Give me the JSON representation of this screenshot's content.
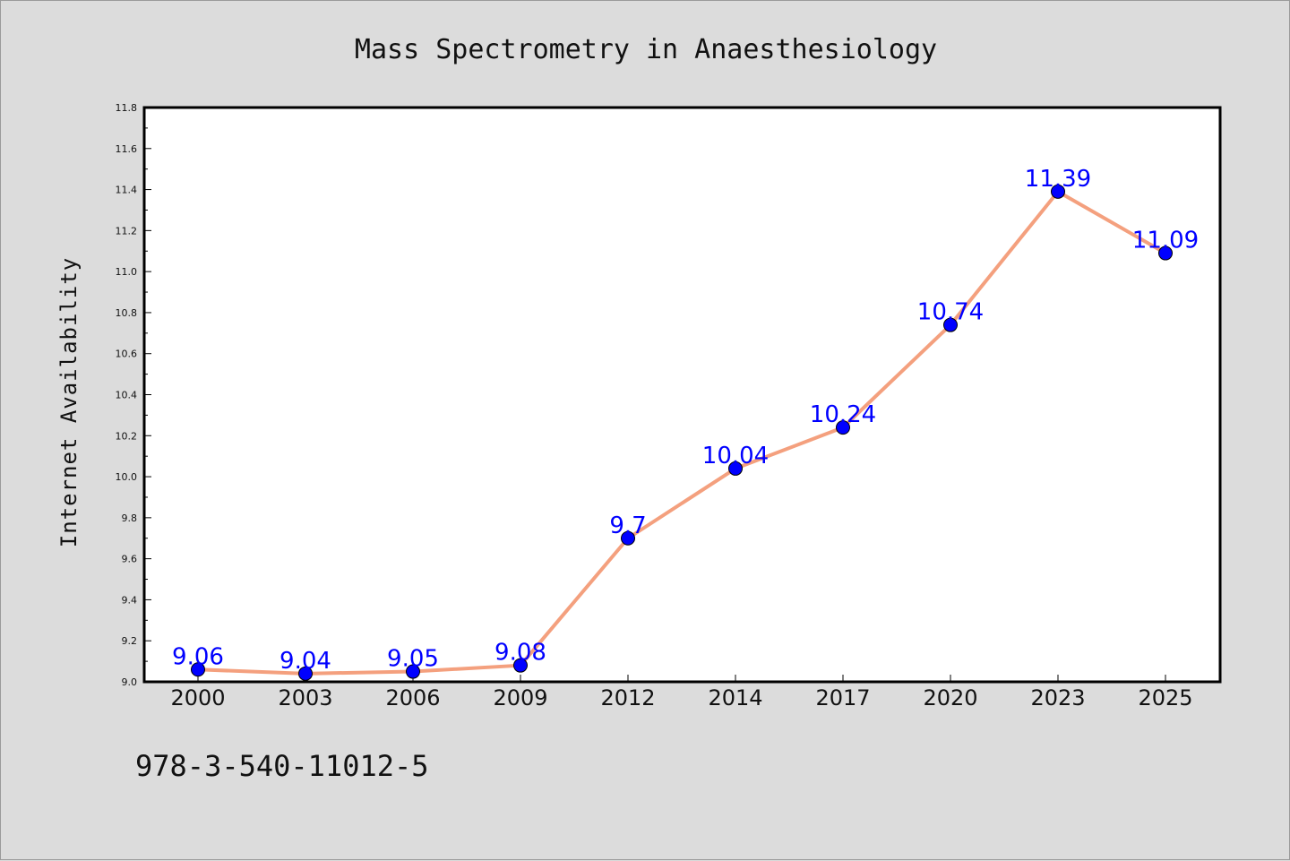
{
  "chart_data": {
    "type": "line",
    "title": "Mass Spectrometry in Anaesthesiology",
    "xlabel": "",
    "ylabel": "Internet Availability",
    "categories": [
      "2000",
      "2003",
      "2006",
      "2009",
      "2012",
      "2014",
      "2017",
      "2020",
      "2023",
      "2025"
    ],
    "series": [
      {
        "values": [
          9.06,
          9.04,
          9.05,
          9.08,
          9.7,
          10.04,
          10.24,
          10.74,
          11.39,
          11.09
        ],
        "data_labels": [
          "9.06",
          "9.04",
          "9.05",
          "9.08",
          "9.7",
          "10.04",
          "10.24",
          "10.74",
          "11.39",
          "11.09"
        ],
        "line_color": "#f4a07e",
        "marker_color": "#0000ff"
      }
    ],
    "ylim": [
      9.0,
      11.8
    ],
    "yticks": [
      "9.0",
      "9.2",
      "9.4",
      "9.6",
      "9.8",
      "10.0",
      "10.2",
      "10.4",
      "10.6",
      "10.8",
      "11.0",
      "11.2",
      "11.4",
      "11.6",
      "11.8"
    ],
    "grid": false,
    "legend": "none"
  },
  "footer": {
    "text": "978-3-540-11012-5"
  }
}
